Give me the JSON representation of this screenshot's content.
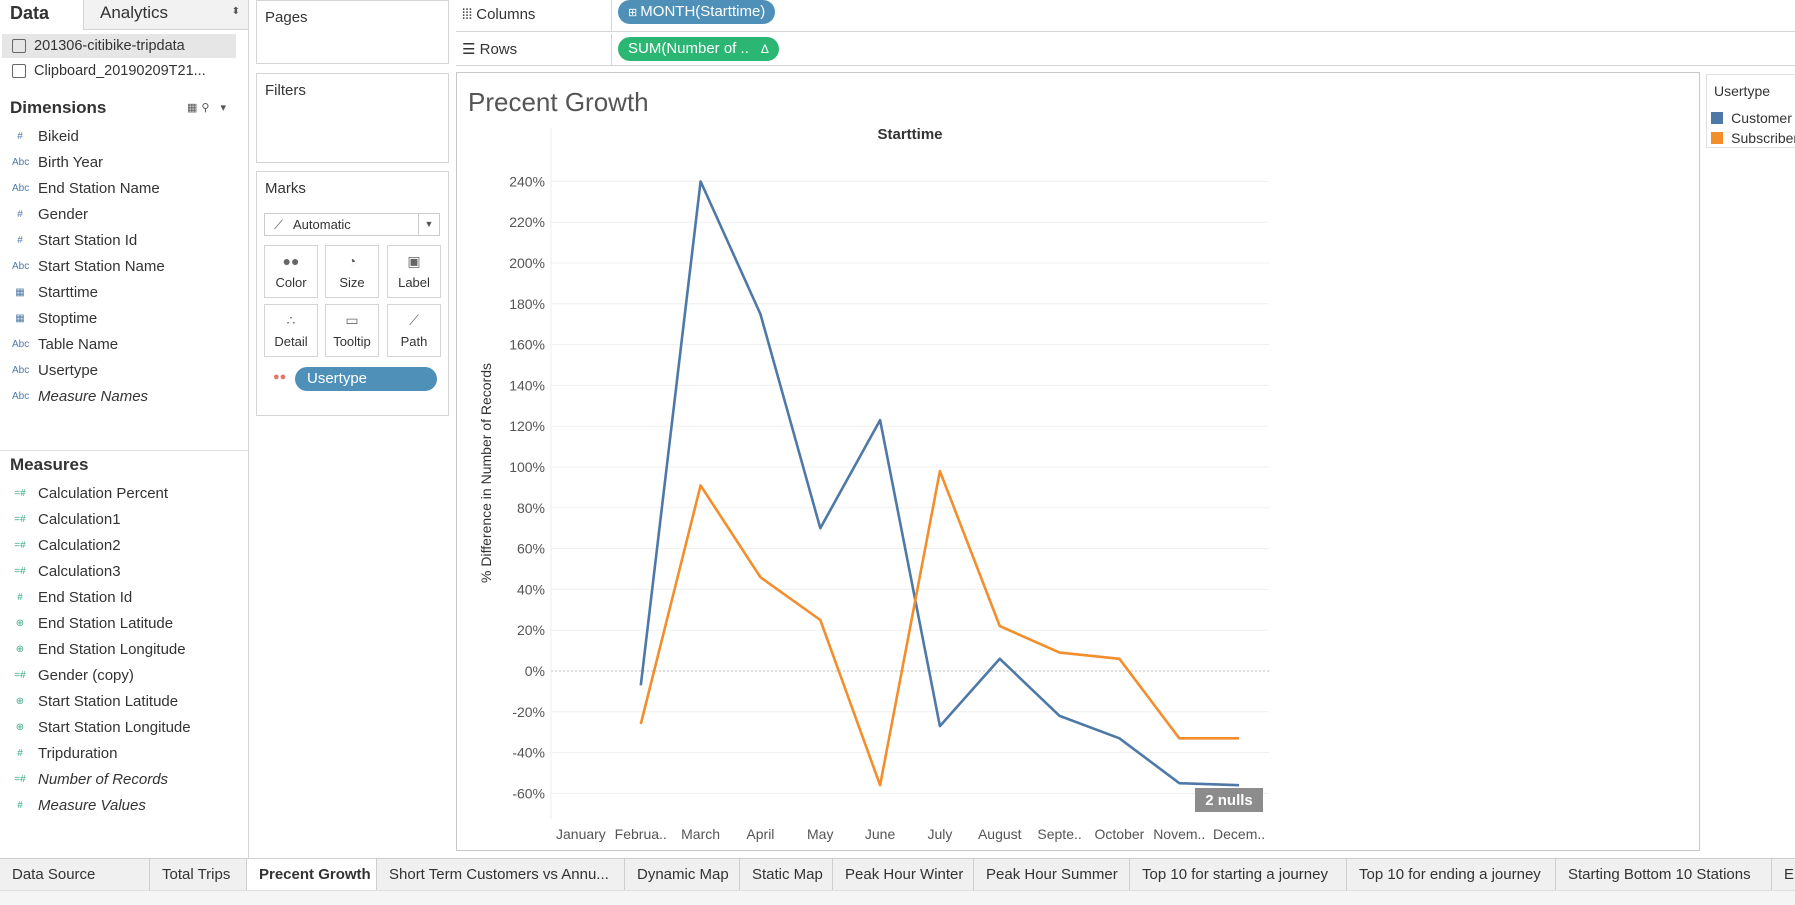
{
  "data_pane": {
    "tab_data": "Data",
    "tab_analytics": "Analytics",
    "datasources": [
      "201306-citibike-tripdata",
      "Clipboard_20190209T21..."
    ],
    "dimensions_title": "Dimensions",
    "dimensions": [
      "Bikeid",
      "Birth Year",
      "End Station Name",
      "Gender",
      "Start Station Id",
      "Start Station Name",
      "Starttime",
      "Stoptime",
      "Table Name",
      "Usertype",
      "Measure Names"
    ],
    "dimension_icons": [
      "#",
      "Abc",
      "Abc",
      "#",
      "#",
      "Abc",
      "date",
      "date",
      "Abc",
      "Abc",
      "Abc"
    ],
    "measures_title": "Measures",
    "measures": [
      "Calculation Percent",
      "Calculation1",
      "Calculation2",
      "Calculation3",
      "End Station Id",
      "End Station Latitude",
      "End Station Longitude",
      "Gender (copy)",
      "Start Station Latitude",
      "Start Station Longitude",
      "Tripduration",
      "Number of Records",
      "Measure Values"
    ],
    "measure_icons": [
      "=#",
      "=#",
      "=#",
      "=#",
      "#",
      "globe",
      "globe",
      "=#",
      "globe",
      "globe",
      "#",
      "=#",
      "#"
    ]
  },
  "cards": {
    "pages": "Pages",
    "filters": "Filters",
    "marks": "Marks",
    "mark_type": "Automatic",
    "mark_buttons": [
      "Color",
      "Size",
      "Label",
      "Detail",
      "Tooltip",
      "Path"
    ],
    "color_pill": "Usertype"
  },
  "shelves": {
    "columns_label": "Columns",
    "rows_label": "Rows",
    "columns_pill": "MONTH(Starttime)",
    "rows_pill": "SUM(Number of .."
  },
  "legend": {
    "title": "Usertype",
    "items": [
      {
        "label": "Customer",
        "color": "#4e79a7"
      },
      {
        "label": "Subscriber",
        "color": "#f28e2b"
      }
    ]
  },
  "sheet_title": "Precent Growth",
  "nulls_badge": "2 nulls",
  "chart_data": {
    "type": "line",
    "title": "Starttime",
    "ylabel": "% Difference in Number of Records",
    "categories": [
      "January",
      "Februa..",
      "March",
      "April",
      "May",
      "June",
      "July",
      "August",
      "Septe..",
      "October",
      "Novem..",
      "Decem.."
    ],
    "yticks": [
      "240%",
      "220%",
      "200%",
      "180%",
      "160%",
      "140%",
      "120%",
      "100%",
      "80%",
      "60%",
      "40%",
      "20%",
      "0%",
      "-20%",
      "-40%",
      "-60%"
    ],
    "ylim": [
      -70,
      250
    ],
    "series": [
      {
        "name": "Customer",
        "color": "#4e79a7",
        "values": [
          null,
          -7,
          240,
          175,
          70,
          123,
          -27,
          6,
          -22,
          -33,
          -55,
          -56
        ]
      },
      {
        "name": "Subscriber",
        "color": "#f28e2b",
        "values": [
          null,
          -26,
          91,
          46,
          25,
          -56,
          98,
          22,
          9,
          6,
          -33,
          -33
        ]
      }
    ]
  },
  "bottom_tabs": [
    "Data Source",
    "Total Trips",
    "Precent Growth",
    "Short Term Customers vs Annu...",
    "Dynamic Map",
    "Static Map",
    "Peak Hour Winter",
    "Peak Hour Summer",
    "Top 10 for starting a journey",
    "Top 10 for ending a journey",
    "Starting Bottom 10 Stations",
    "End"
  ],
  "active_tab": "Precent Growth"
}
